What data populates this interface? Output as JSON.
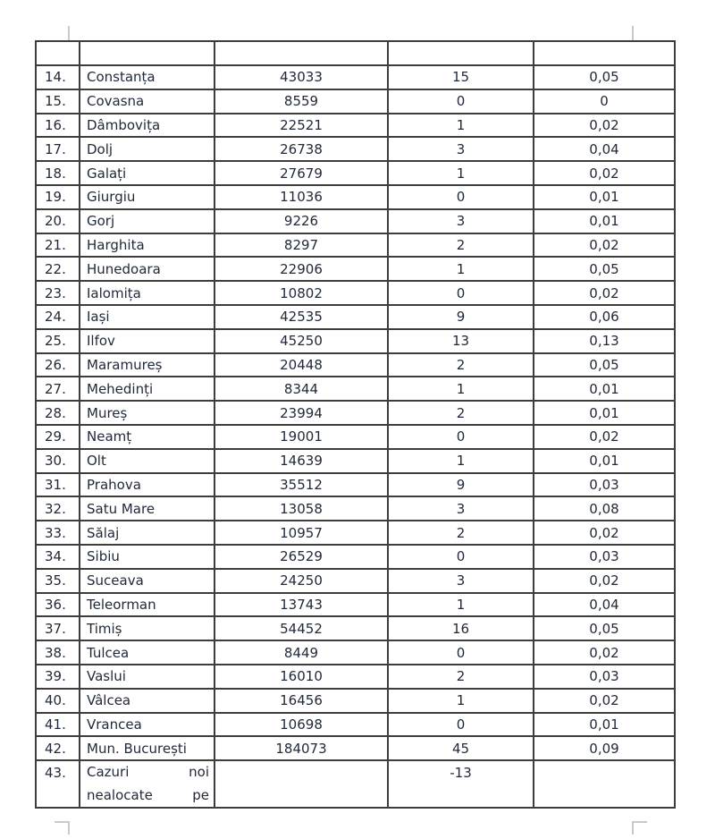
{
  "page": {
    "kind": "word-document-table-page",
    "background": "#ffffff"
  },
  "colors": {
    "table_border": "#3d3d3d",
    "text": "#212a3a",
    "margin_marks": "#c9c9c9"
  },
  "table": {
    "header": [
      "",
      "",
      "",
      "",
      ""
    ],
    "rows": [
      {
        "no": "14.",
        "name": "Constanța",
        "v1": "43033",
        "v2": "15",
        "v3": "0,05"
      },
      {
        "no": "15.",
        "name": "Covasna",
        "v1": "8559",
        "v2": "0",
        "v3": "0"
      },
      {
        "no": "16.",
        "name": "Dâmbovița",
        "v1": "22521",
        "v2": "1",
        "v3": "0,02"
      },
      {
        "no": "17.",
        "name": "Dolj",
        "v1": "26738",
        "v2": "3",
        "v3": "0,04"
      },
      {
        "no": "18.",
        "name": "Galați",
        "v1": "27679",
        "v2": "1",
        "v3": "0,02"
      },
      {
        "no": "19.",
        "name": "Giurgiu",
        "v1": "11036",
        "v2": "0",
        "v3": "0,01"
      },
      {
        "no": "20.",
        "name": "Gorj",
        "v1": "9226",
        "v2": "3",
        "v3": "0,01"
      },
      {
        "no": "21.",
        "name": "Harghita",
        "v1": "8297",
        "v2": "2",
        "v3": "0,02"
      },
      {
        "no": "22.",
        "name": "Hunedoara",
        "v1": "22906",
        "v2": "1",
        "v3": "0,05"
      },
      {
        "no": "23.",
        "name": "Ialomița",
        "v1": "10802",
        "v2": "0",
        "v3": "0,02"
      },
      {
        "no": "24.",
        "name": "Iași",
        "v1": "42535",
        "v2": "9",
        "v3": "0,06"
      },
      {
        "no": "25.",
        "name": "Ilfov",
        "v1": "45250",
        "v2": "13",
        "v3": "0,13"
      },
      {
        "no": "26.",
        "name": "Maramureș",
        "v1": "20448",
        "v2": "2",
        "v3": "0,05"
      },
      {
        "no": "27.",
        "name": "Mehedinți",
        "v1": "8344",
        "v2": "1",
        "v3": "0,01"
      },
      {
        "no": "28.",
        "name": "Mureș",
        "v1": "23994",
        "v2": "2",
        "v3": "0,01"
      },
      {
        "no": "29.",
        "name": "Neamț",
        "v1": "19001",
        "v2": "0",
        "v3": "0,02"
      },
      {
        "no": "30.",
        "name": "Olt",
        "v1": "14639",
        "v2": "1",
        "v3": "0,01"
      },
      {
        "no": "31.",
        "name": "Prahova",
        "v1": "35512",
        "v2": "9",
        "v3": "0,03"
      },
      {
        "no": "32.",
        "name": "Satu Mare",
        "v1": "13058",
        "v2": "3",
        "v3": "0,08"
      },
      {
        "no": "33.",
        "name": "Sălaj",
        "v1": "10957",
        "v2": "2",
        "v3": "0,02"
      },
      {
        "no": "34.",
        "name": "Sibiu",
        "v1": "26529",
        "v2": "0",
        "v3": "0,03"
      },
      {
        "no": "35.",
        "name": "Suceava",
        "v1": "24250",
        "v2": "3",
        "v3": "0,02"
      },
      {
        "no": "36.",
        "name": "Teleorman",
        "v1": "13743",
        "v2": "1",
        "v3": "0,04"
      },
      {
        "no": "37.",
        "name": "Timiș",
        "v1": "54452",
        "v2": "16",
        "v3": "0,05"
      },
      {
        "no": "38.",
        "name": "Tulcea",
        "v1": "8449",
        "v2": "0",
        "v3": "0,02"
      },
      {
        "no": "39.",
        "name": "Vaslui",
        "v1": "16010",
        "v2": "2",
        "v3": "0,03"
      },
      {
        "no": "40.",
        "name": "Vâlcea",
        "v1": "16456",
        "v2": "1",
        "v3": "0,02"
      },
      {
        "no": "41.",
        "name": "Vrancea",
        "v1": "10698",
        "v2": "0",
        "v3": "0,01"
      },
      {
        "no": "42.",
        "name": "Mun. București",
        "v1": "184073",
        "v2": "45",
        "v3": "0,09"
      }
    ],
    "last_row": {
      "no": "43.",
      "name_line1": [
        "Cazuri",
        "noi"
      ],
      "name_line2": [
        "nealocate",
        "pe"
      ],
      "v1": "",
      "v2": "-13",
      "v3": ""
    }
  }
}
